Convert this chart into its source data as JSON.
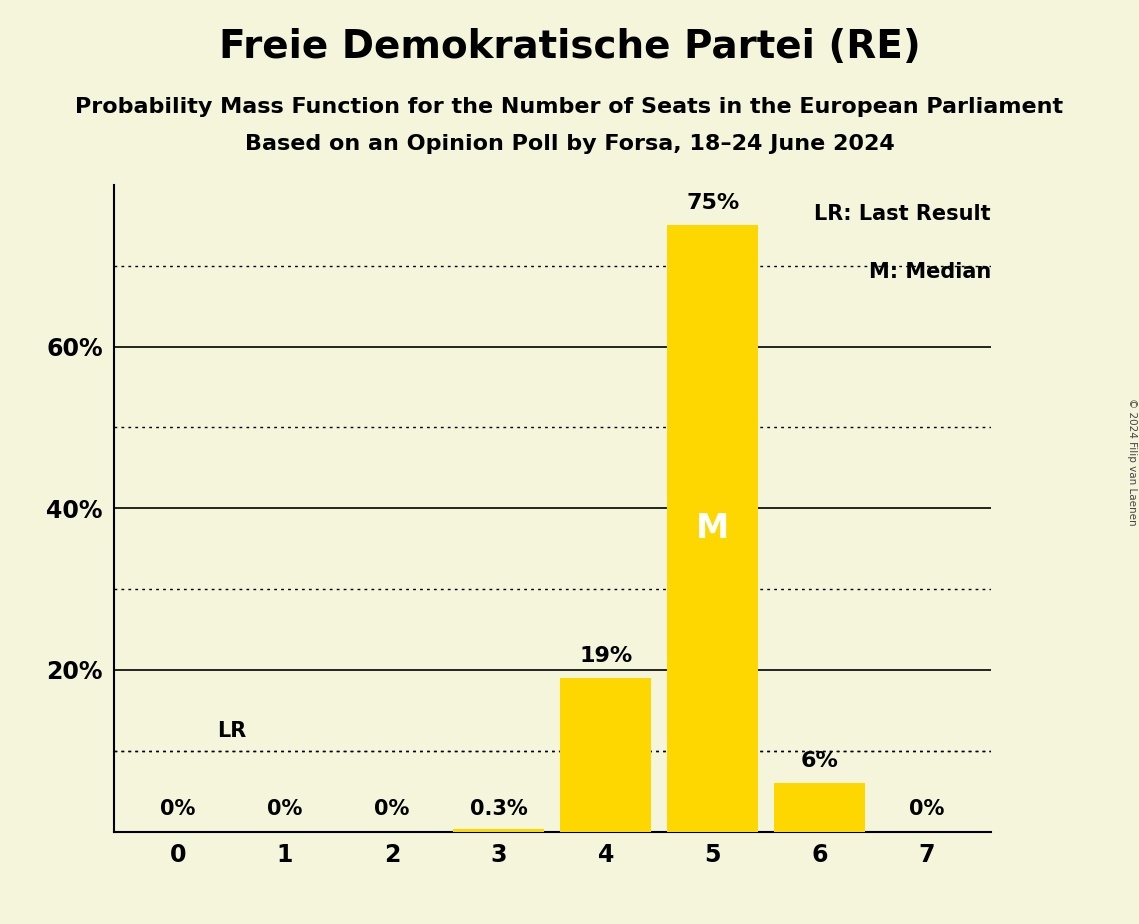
{
  "title": "Freie Demokratische Partei (RE)",
  "subtitle1": "Probability Mass Function for the Number of Seats in the European Parliament",
  "subtitle2": "Based on an Opinion Poll by Forsa, 18–24 June 2024",
  "copyright": "© 2024 Filip van Laenen",
  "categories": [
    0,
    1,
    2,
    3,
    4,
    5,
    6,
    7
  ],
  "values": [
    0,
    0,
    0,
    0.3,
    19,
    75,
    6,
    0
  ],
  "labels": [
    "0%",
    "0%",
    "0%",
    "0.3%",
    "19%",
    "75%",
    "6%",
    "0%"
  ],
  "bar_color": "#FFD700",
  "background_color": "#F5F5DC",
  "median_seat": 5,
  "median_label": "M",
  "lr_value": 10,
  "lr_label": "LR",
  "legend_lr": "LR: Last Result",
  "legend_m": "M: Median",
  "ylim": [
    0,
    80
  ],
  "ytick_labeled": [
    20,
    40,
    60
  ],
  "solid_gridlines": [
    20,
    40,
    60
  ],
  "dotted_gridlines": [
    10,
    30,
    50,
    70
  ]
}
